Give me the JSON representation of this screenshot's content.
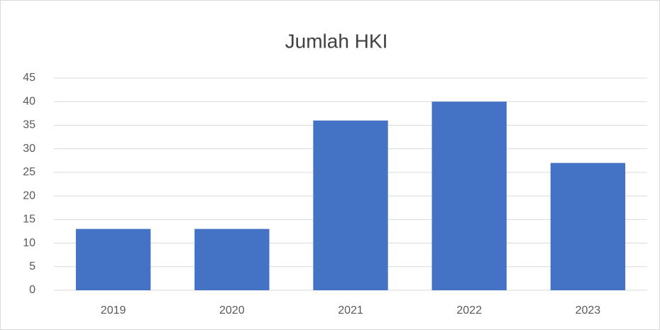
{
  "chart_data": {
    "type": "bar",
    "title": "Jumlah HKI",
    "categories": [
      "2019",
      "2020",
      "2021",
      "2022",
      "2023"
    ],
    "values": [
      13,
      13,
      36,
      40,
      27
    ],
    "color": "#4472c4",
    "ylim": [
      0,
      45
    ],
    "yticks": [
      0,
      5,
      10,
      15,
      20,
      25,
      30,
      35,
      40,
      45
    ],
    "grid": true
  }
}
